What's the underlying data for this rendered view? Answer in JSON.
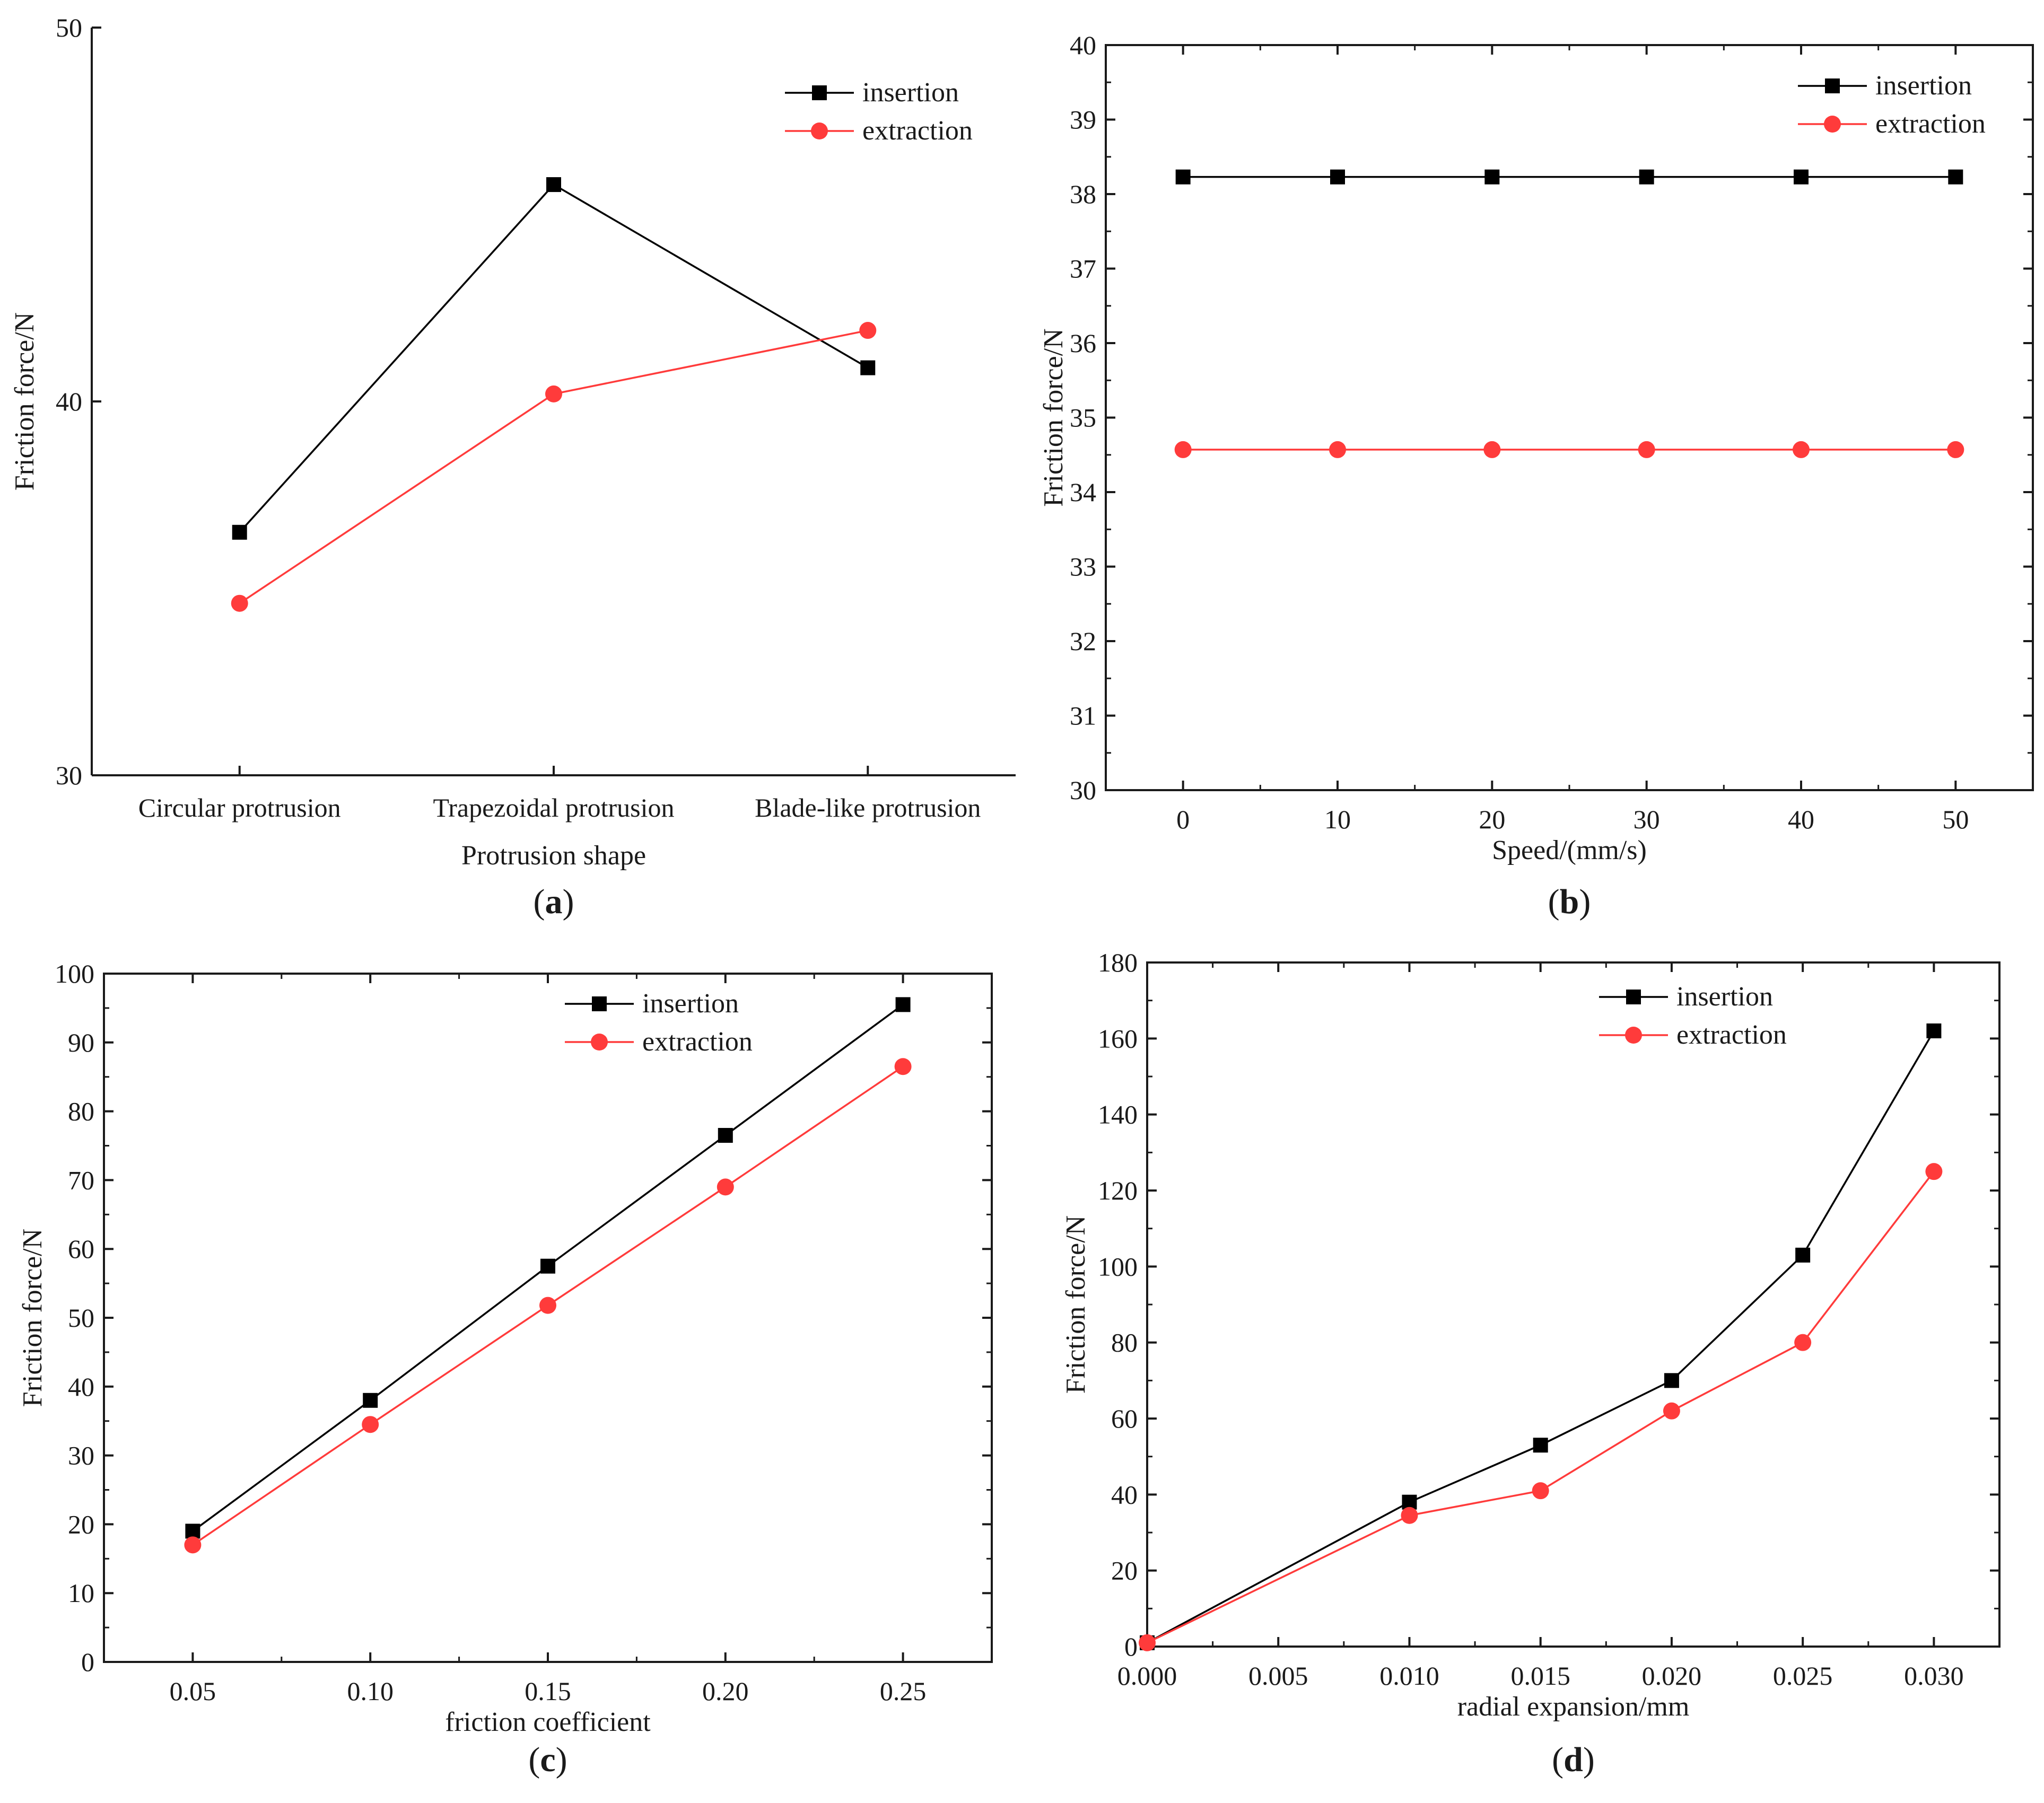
{
  "figure": {
    "panels": [
      "a",
      "b",
      "c",
      "d"
    ]
  },
  "colors": {
    "insertion": "#000000",
    "extraction": "#ff3b3b",
    "axis": "#1a1a1a"
  },
  "chart_data": [
    {
      "id": "a",
      "panel_label": "a",
      "type": "line",
      "categories": [
        "Circular protrusion",
        "Trapezoidal protrusion",
        "Blade-like protrusion"
      ],
      "series": [
        {
          "name": "insertion",
          "marker": "square",
          "values": [
            36.5,
            45.8,
            40.9
          ]
        },
        {
          "name": "extraction",
          "marker": "circle",
          "values": [
            34.6,
            40.2,
            41.9
          ]
        }
      ],
      "xlabel": "Protrusion shape",
      "ylabel": "Friction force/N",
      "ylim": [
        30,
        50
      ],
      "yticks": [
        30,
        40,
        50
      ],
      "ytick_labels": [
        "30",
        "40",
        "50"
      ],
      "legend": "top-right"
    },
    {
      "id": "b",
      "panel_label": "b",
      "type": "line",
      "x": [
        0,
        10,
        20,
        30,
        40,
        50
      ],
      "series": [
        {
          "name": "insertion",
          "marker": "square",
          "values": [
            38.23,
            38.23,
            38.23,
            38.23,
            38.23,
            38.23
          ]
        },
        {
          "name": "extraction",
          "marker": "circle",
          "values": [
            34.57,
            34.57,
            34.57,
            34.57,
            34.57,
            34.57
          ]
        }
      ],
      "xlabel": "Speed/(mm/s)",
      "ylabel": "Friction force/N",
      "xlim": [
        -5,
        55
      ],
      "xticks": [
        0,
        10,
        20,
        30,
        40,
        50
      ],
      "xtick_labels": [
        "0",
        "10",
        "20",
        "30",
        "40",
        "50"
      ],
      "ylim": [
        30,
        40
      ],
      "yticks": [
        30,
        31,
        32,
        33,
        34,
        35,
        36,
        37,
        38,
        39,
        40
      ],
      "ytick_labels": [
        "30",
        "31",
        "32",
        "33",
        "34",
        "35",
        "36",
        "37",
        "38",
        "39",
        "40"
      ],
      "legend": "top-right"
    },
    {
      "id": "c",
      "panel_label": "c",
      "type": "line",
      "x": [
        0.05,
        0.1,
        0.15,
        0.2,
        0.25
      ],
      "series": [
        {
          "name": "insertion",
          "marker": "square",
          "values": [
            19.0,
            38.0,
            57.5,
            76.5,
            95.5
          ]
        },
        {
          "name": "extraction",
          "marker": "circle",
          "values": [
            17.0,
            34.5,
            51.8,
            69.0,
            86.5
          ]
        }
      ],
      "xlabel": "friction coefficient",
      "ylabel": "Friction force/N",
      "xlim": [
        0.025,
        0.275
      ],
      "xticks": [
        0.05,
        0.1,
        0.15,
        0.2,
        0.25
      ],
      "xtick_labels": [
        "0.05",
        "0.10",
        "0.15",
        "0.20",
        "0.25"
      ],
      "ylim": [
        0,
        100
      ],
      "yticks": [
        0,
        10,
        20,
        30,
        40,
        50,
        60,
        70,
        80,
        90,
        100
      ],
      "ytick_labels": [
        "0",
        "10",
        "20",
        "30",
        "40",
        "50",
        "60",
        "70",
        "80",
        "90",
        "100"
      ],
      "legend": "top-right"
    },
    {
      "id": "d",
      "panel_label": "d",
      "type": "line",
      "x": [
        0.0,
        0.01,
        0.015,
        0.02,
        0.025,
        0.03
      ],
      "series": [
        {
          "name": "insertion",
          "marker": "square",
          "values": [
            1,
            38,
            53,
            70,
            103,
            162
          ]
        },
        {
          "name": "extraction",
          "marker": "circle",
          "values": [
            1,
            34.5,
            41,
            62,
            80,
            125
          ]
        }
      ],
      "xlabel": "radial expansion/mm",
      "ylabel": "Friction force/N",
      "xlim": [
        0.0,
        0.0325
      ],
      "xticks": [
        0.0,
        0.005,
        0.01,
        0.015,
        0.02,
        0.025,
        0.03
      ],
      "xtick_labels": [
        "0.000",
        "0.005",
        "0.010",
        "0.015",
        "0.020",
        "0.025",
        "0.030"
      ],
      "ylim": [
        0,
        180
      ],
      "yticks": [
        0,
        20,
        40,
        60,
        80,
        100,
        120,
        140,
        160,
        180
      ],
      "ytick_labels": [
        "0",
        "20",
        "40",
        "60",
        "80",
        "100",
        "120",
        "140",
        "160",
        "180"
      ],
      "legend": "top-right"
    }
  ]
}
